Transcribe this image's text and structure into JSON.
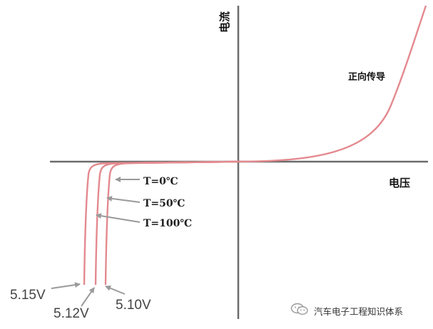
{
  "chart_data": {
    "type": "line",
    "ylabel": "电流",
    "xlabel": "电压",
    "annotations": {
      "forward": "正向传导"
    },
    "series": [
      {
        "name": "T=0℃",
        "breakdown_voltage_label": "5.10V"
      },
      {
        "name": "T=50℃",
        "breakdown_voltage_label": "5.12V"
      },
      {
        "name": "T=100℃",
        "breakdown_voltage_label": "5.15V"
      }
    ],
    "grid": false,
    "colors": {
      "curve": "#e38a8f",
      "axis": "#6b6b6b",
      "arrow": "#9a9a9a"
    }
  },
  "watermark": {
    "text": "汽车电子工程知识体系",
    "icon": "wechat-icon"
  }
}
